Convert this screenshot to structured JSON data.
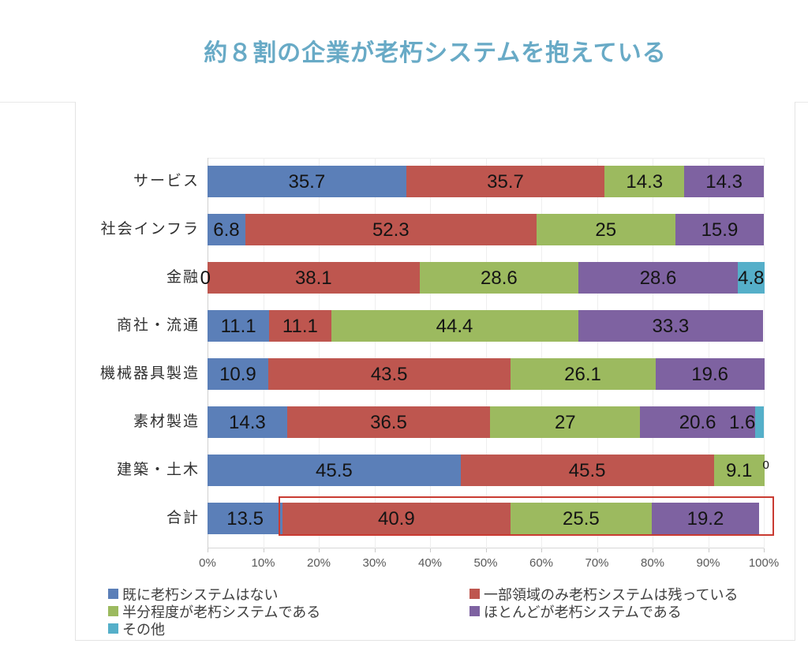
{
  "title": {
    "text": "約８割の企業が老朽システムを抱えている",
    "color": "#68AAC6"
  },
  "chart_data": {
    "type": "bar",
    "orientation": "horizontal",
    "stacked": true,
    "title": "約８割の企業が老朽システムを抱えている",
    "xlim": [
      0,
      100
    ],
    "xticks": [
      "0%",
      "10%",
      "20%",
      "30%",
      "40%",
      "50%",
      "60%",
      "70%",
      "80%",
      "90%",
      "100%"
    ],
    "grid": "vertical-light",
    "categories": [
      "サービス",
      "社会インフラ",
      "金融",
      "商社・流通",
      "機械器具製造",
      "素材製造",
      "建築・土木",
      "合計"
    ],
    "series": [
      {
        "name": "既に老朽システムはない",
        "color": "#5B7FB8",
        "values": [
          35.7,
          6.8,
          0,
          11.1,
          10.9,
          14.3,
          45.5,
          13.5
        ]
      },
      {
        "name": "一部領域のみ老朽システムは残っている",
        "color": "#BE564F",
        "values": [
          35.7,
          52.3,
          38.1,
          11.1,
          43.5,
          36.5,
          45.5,
          40.9
        ]
      },
      {
        "name": "半分程度が老朽システムである",
        "color": "#9CBA5F",
        "values": [
          14.3,
          25,
          28.6,
          44.4,
          26.1,
          27,
          9.1,
          25.5
        ]
      },
      {
        "name": "ほとんどが老朽システムである",
        "color": "#7E62A1",
        "values": [
          14.3,
          15.9,
          28.6,
          33.3,
          19.6,
          20.6,
          0,
          19.2
        ]
      },
      {
        "name": "その他",
        "color": "#55AFC9",
        "values": [
          0,
          0,
          4.8,
          0,
          0,
          1.6,
          0,
          0
        ]
      }
    ],
    "zero_annotations": [
      {
        "category": "金融",
        "series": "既に老朽システムはない",
        "text": "0",
        "placement": "left-of-bar"
      },
      {
        "category": "建築・土木",
        "series": "ほとんどが老朽システムである",
        "text": "0",
        "placement": "end-of-bar-small"
      }
    ],
    "highlight": {
      "category": "合計",
      "color": "#C93B32",
      "note": "red box around aging-system share of total row"
    },
    "legend": {
      "position": "bottom-left",
      "columns": [
        [
          0,
          2,
          4
        ],
        [
          1,
          3
        ]
      ]
    }
  }
}
